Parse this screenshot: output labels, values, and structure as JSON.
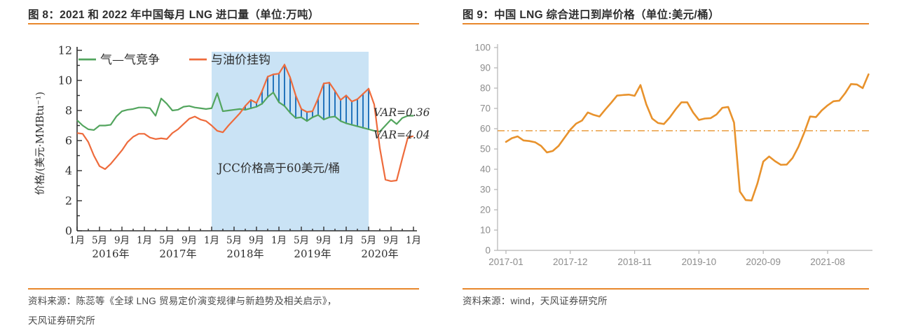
{
  "figures": {
    "accent_color": "#E8872B",
    "left": {
      "title": "图 8：2021 和 2022 年中国每月 LNG 进口量（单位:万吨）",
      "source_line1": "资料来源：陈蕊等《全球 LNG 贸易定价演变规律与新趋势及相关启示》，",
      "source_line2": "天风证券研究所"
    },
    "right": {
      "title": "图 9：中国 LNG 综合进口到岸价格（单位:美元/桶）",
      "source_line1": "资料来源：wind，天风证券研究所"
    }
  },
  "chart_data": [
    {
      "type": "line",
      "title": "图 8：2021 和 2022 年中国每月 LNG 进口量（单位:万吨）",
      "ylabel": "价格/(美元·MMBtu⁻¹)",
      "ylim": [
        0,
        12
      ],
      "yticks": [
        0,
        2,
        4,
        6,
        8,
        10,
        12
      ],
      "x_start": "2016-01",
      "x_end": "2021-01",
      "xtick_labels": [
        "1月",
        "5月",
        "9月",
        "1月",
        "5月",
        "9月",
        "1月",
        "5月",
        "9月",
        "1月",
        "5月",
        "9月",
        "1月",
        "5月",
        "9月",
        "1月"
      ],
      "year_labels": [
        "2016年",
        "2017年",
        "2018年",
        "2019年",
        "2020年"
      ],
      "legend_position": "top-left",
      "grid": false,
      "series": [
        {
          "name": "气—气竞争",
          "color": "#53A55E",
          "values": [
            7.35,
            7.0,
            6.75,
            6.7,
            7.0,
            7.0,
            7.05,
            7.6,
            7.95,
            8.05,
            8.1,
            8.2,
            8.2,
            8.15,
            7.65,
            8.8,
            8.45,
            8.0,
            8.05,
            8.25,
            8.3,
            8.2,
            8.15,
            8.1,
            8.15,
            9.15,
            7.95,
            8.0,
            8.05,
            8.1,
            8.05,
            8.15,
            8.25,
            8.45,
            8.9,
            9.2,
            8.55,
            8.3,
            7.85,
            7.5,
            7.55,
            7.3,
            7.55,
            7.7,
            7.4,
            7.55,
            7.6,
            7.3,
            7.15,
            7.05,
            6.95,
            6.85,
            6.75,
            6.65,
            6.6,
            7.0,
            7.4,
            7.1,
            7.5,
            7.65,
            7.65
          ]
        },
        {
          "name": "与油价挂钩",
          "color": "#EE6B3C",
          "values": [
            6.5,
            6.45,
            5.9,
            5.0,
            4.3,
            4.1,
            4.45,
            4.9,
            5.35,
            5.9,
            6.25,
            6.45,
            6.45,
            6.2,
            6.1,
            6.15,
            6.1,
            6.5,
            6.75,
            7.1,
            7.45,
            7.6,
            7.4,
            7.3,
            7.0,
            6.65,
            6.55,
            7.0,
            7.4,
            7.8,
            8.3,
            8.7,
            8.5,
            9.3,
            10.25,
            10.4,
            10.45,
            11.05,
            10.2,
            9.0,
            8.1,
            7.9,
            7.95,
            8.8,
            9.8,
            9.85,
            9.3,
            8.7,
            9.0,
            8.6,
            8.75,
            9.1,
            9.45,
            8.4,
            5.5,
            3.4,
            3.3,
            3.35,
            4.8,
            6.2,
            6.3
          ]
        }
      ],
      "shaded_region": {
        "label": "JCC价格高于60美元/桶",
        "start_index": 24,
        "end_index": 52,
        "color": "#CAE3F5"
      },
      "hatch": {
        "color": "#2575BC",
        "note": "vertical hatch where oil-linked exceeds gas-gas inside shaded region"
      },
      "annotations": [
        {
          "text": "VAR=0.36",
          "series": "气—气竞争"
        },
        {
          "text": "VAR=4.04",
          "series": "与油价挂钩"
        }
      ]
    },
    {
      "type": "line",
      "title": "图 9：中国 LNG 综合进口到岸价格（单位:美元/桶）",
      "xlabel": "",
      "ylabel": "",
      "ylim": [
        0,
        100
      ],
      "yticks": [
        0,
        10,
        20,
        30,
        40,
        50,
        60,
        70,
        80,
        90,
        100
      ],
      "x_start": "2017-01",
      "xtick_labels": [
        "2017-01",
        "2017-12",
        "2018-11",
        "2019-10",
        "2020-09",
        "2021-08"
      ],
      "xtick_indices": [
        0,
        11,
        22,
        33,
        44,
        55
      ],
      "grid": false,
      "reference_line": {
        "value": 59,
        "style": "dash-dot",
        "color": "#E8922C"
      },
      "series": [
        {
          "name": "中国LNG综合进口到岸价格",
          "color": "#E8922C",
          "values": [
            53.5,
            55.3,
            56.2,
            54.2,
            53.9,
            53.3,
            51.5,
            48.3,
            49.0,
            51.5,
            55.5,
            59.5,
            62.5,
            64.0,
            68.0,
            66.8,
            66.0,
            69.5,
            72.8,
            76.3,
            76.6,
            76.8,
            76.2,
            81.5,
            72.0,
            65.0,
            62.8,
            62.3,
            65.5,
            69.5,
            73.0,
            73.0,
            68.0,
            64.3,
            65.0,
            65.2,
            67.0,
            70.3,
            70.7,
            63.0,
            29.0,
            24.8,
            24.6,
            33.0,
            43.8,
            46.3,
            44.0,
            42.2,
            42.3,
            45.5,
            51.0,
            58.0,
            66.0,
            65.7,
            69.0,
            71.5,
            73.5,
            73.8,
            77.5,
            82.0,
            81.8,
            80.0,
            86.8
          ]
        }
      ]
    }
  ]
}
